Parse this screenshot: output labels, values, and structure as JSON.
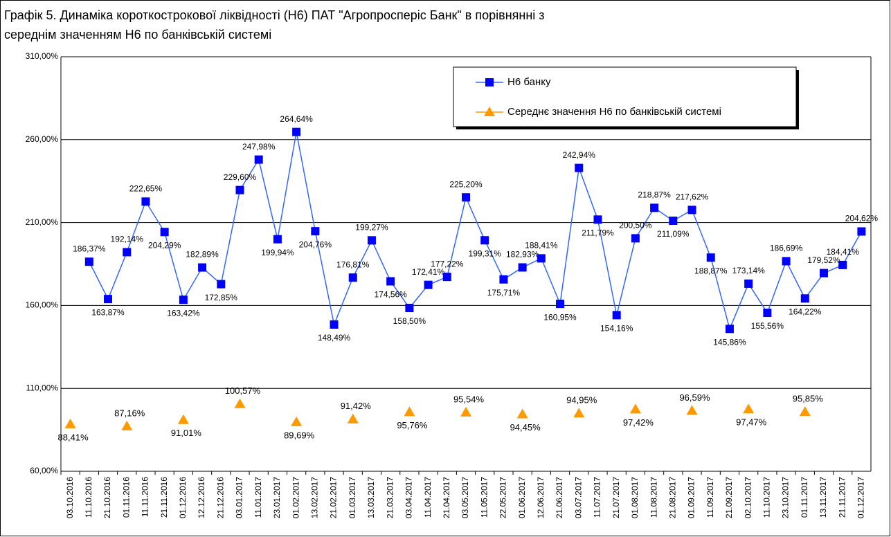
{
  "chart_data": {
    "type": "line",
    "title": [
      "Графік 5. Динаміка короткострокової ліквідності (Н6) ПАТ \"Агропросперіс Банк\" в порівнянні з",
      "середнім значенням Н6 по банківській системі"
    ],
    "categories": [
      "03.10.2016",
      "11.10.2016",
      "21.10.2016",
      "01.11.2016",
      "11.11.2016",
      "21.11.2016",
      "01.12.2016",
      "12.12.2016",
      "21.12.2016",
      "03.01.2017",
      "11.01.2017",
      "23.01.2017",
      "01.02.2017",
      "13.02.2017",
      "21.02.2017",
      "01.03.2017",
      "13.03.2017",
      "21.03.2017",
      "03.04.2017",
      "11.04.2017",
      "21.04.2017",
      "03.05.2017",
      "11.05.2017",
      "22.05.2017",
      "01.06.2017",
      "12.06.2017",
      "21.06.2017",
      "03.07.2017",
      "11.07.2017",
      "21.07.2017",
      "01.08.2017",
      "11.08.2017",
      "21.08.2017",
      "01.09.2017",
      "11.09.2017",
      "21.09.2017",
      "02.10.2017",
      "11.10.2017",
      "23.10.2017",
      "01.11.2017",
      "13.11.2017",
      "21.11.2017",
      "01.12.2017"
    ],
    "series": [
      {
        "name": "Н6 банку",
        "color": "#0000ff",
        "line_color": "#3366ff",
        "marker": "square",
        "line": true,
        "values": [
          null,
          186.37,
          163.87,
          192.14,
          222.65,
          204.29,
          163.42,
          182.89,
          172.85,
          229.6,
          247.98,
          199.94,
          264.64,
          204.76,
          148.49,
          176.81,
          199.27,
          174.56,
          158.5,
          172.41,
          177.22,
          225.2,
          199.31,
          175.71,
          182.93,
          188.41,
          160.95,
          242.94,
          211.79,
          154.16,
          200.5,
          218.87,
          211.09,
          217.62,
          188.87,
          145.86,
          173.14,
          155.56,
          186.69,
          164.22,
          179.52,
          184.41,
          204.62
        ],
        "value_labels": [
          null,
          "186,37%",
          "163,87%",
          "192,14%",
          "222,65%",
          "204,29%",
          "163,42%",
          "182,89%",
          "172,85%",
          "229,60%",
          "247,98%",
          "199,94%",
          "264,64%",
          "204,76%",
          "148,49%",
          "176,81%",
          "199,27%",
          "174,56%",
          "158,50%",
          "172,41%",
          "177,22%",
          "225,20%",
          "199,31%",
          "175,71%",
          "182,93%",
          "188,41%",
          "160,95%",
          "242,94%",
          "211,79%",
          "154,16%",
          "200,50%",
          "218,87%",
          "211,09%",
          "217,62%",
          "188,87%",
          "145,86%",
          "173,14%",
          "155,56%",
          "186,69%",
          "164,22%",
          "179,52%",
          "184,41%",
          "204,62%"
        ]
      },
      {
        "name": "Середнє значення Н6 по банківській системі",
        "color": "#ff9900",
        "line_color": "#ff9900",
        "marker": "triangle",
        "line": false,
        "values": [
          88.41,
          null,
          null,
          87.16,
          null,
          null,
          91.01,
          null,
          null,
          100.57,
          null,
          null,
          89.69,
          null,
          null,
          91.42,
          null,
          null,
          95.76,
          null,
          null,
          95.54,
          null,
          null,
          94.45,
          null,
          null,
          94.95,
          null,
          null,
          97.42,
          null,
          null,
          96.59,
          null,
          null,
          97.47,
          null,
          null,
          95.85,
          null,
          null,
          null
        ],
        "value_labels": [
          "88,41%",
          null,
          null,
          "87,16%",
          null,
          null,
          "91,01%",
          null,
          null,
          "100,57%",
          null,
          null,
          "89,69%",
          null,
          null,
          "91,42%",
          null,
          null,
          "95,76%",
          null,
          null,
          "95,54%",
          null,
          null,
          "94,45%",
          null,
          null,
          "94,95%",
          null,
          null,
          "97,42%",
          null,
          null,
          "96,59%",
          null,
          null,
          "97,47%",
          null,
          null,
          "95,85%",
          null,
          null,
          null
        ]
      }
    ],
    "ylim": [
      60,
      310
    ],
    "yticks": [
      {
        "value": 60,
        "label": "60,00%"
      },
      {
        "value": 110,
        "label": "110,00%"
      },
      {
        "value": 160,
        "label": "160,00%"
      },
      {
        "value": 210,
        "label": "210,00%"
      },
      {
        "value": 260,
        "label": "260,00%"
      },
      {
        "value": 310,
        "label": "310,00%"
      }
    ],
    "grid": true,
    "legend": "top-right"
  }
}
